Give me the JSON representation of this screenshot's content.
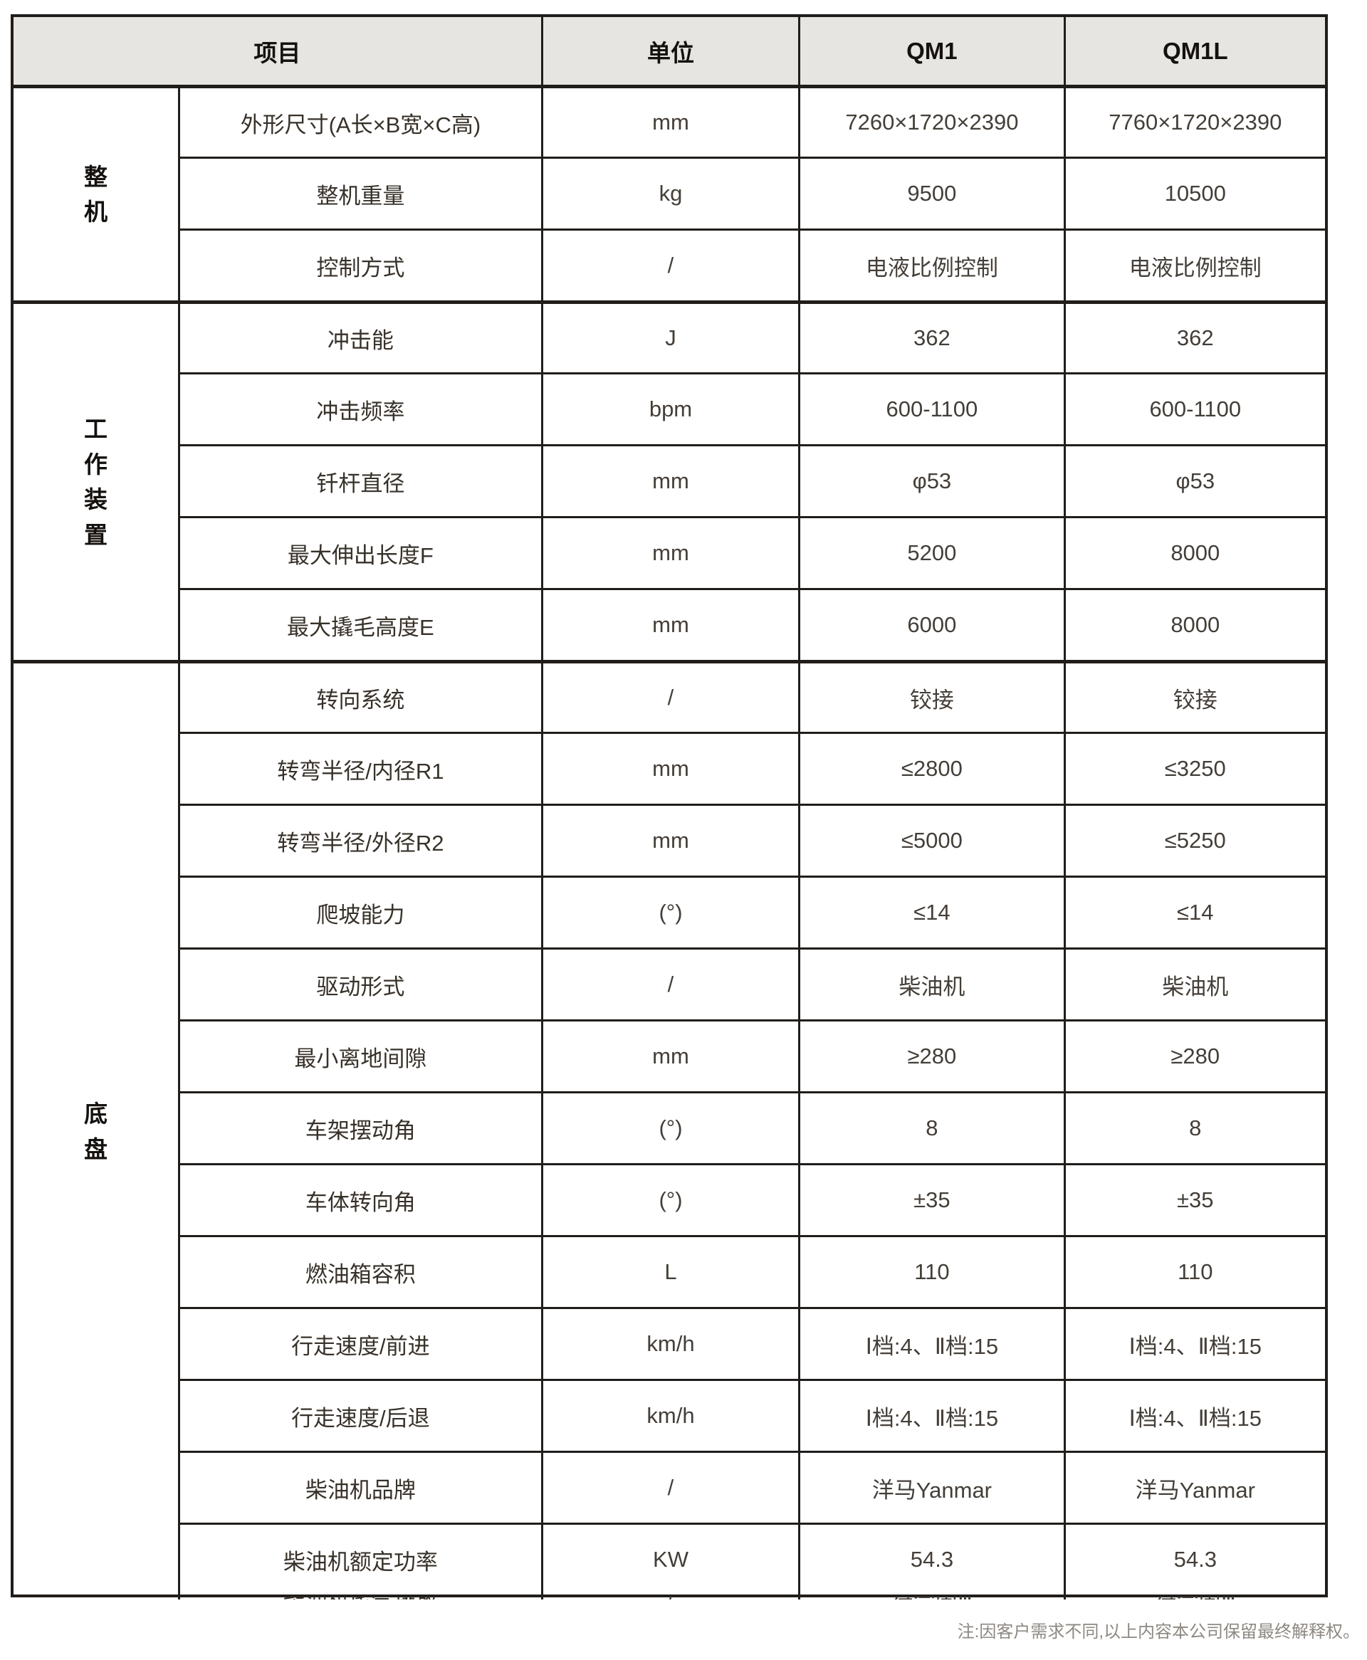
{
  "table": {
    "headers": {
      "item": "项目",
      "unit": "单位",
      "qm1": "QM1",
      "qm1l": "QM1L"
    },
    "groups": [
      {
        "label": "整机",
        "rows": [
          {
            "item": "外形尺寸(A长×B宽×C高)",
            "unit": "mm",
            "qm1": "7260×1720×2390",
            "qm1l": "7760×1720×2390"
          },
          {
            "item": "整机重量",
            "unit": "kg",
            "qm1": "9500",
            "qm1l": "10500"
          },
          {
            "item": "控制方式",
            "unit": "/",
            "qm1": "电液比例控制",
            "qm1l": "电液比例控制"
          }
        ]
      },
      {
        "label": "工作装置",
        "rows": [
          {
            "item": "冲击能",
            "unit": "J",
            "qm1": "362",
            "qm1l": "362"
          },
          {
            "item": "冲击频率",
            "unit": "bpm",
            "qm1": "600-1100",
            "qm1l": "600-1100"
          },
          {
            "item": "钎杆直径",
            "unit": "mm",
            "qm1": "φ53",
            "qm1l": "φ53"
          },
          {
            "item": "最大伸出长度F",
            "unit": "mm",
            "qm1": "5200",
            "qm1l": "8000"
          },
          {
            "item": "最大撬毛高度E",
            "unit": "mm",
            "qm1": "6000",
            "qm1l": "8000"
          }
        ]
      },
      {
        "label": "底盘",
        "rows": [
          {
            "item": "转向系统",
            "unit": "/",
            "qm1": "铰接",
            "qm1l": "铰接"
          },
          {
            "item": "转弯半径/内径R1",
            "unit": "mm",
            "qm1": "≤2800",
            "qm1l": "≤3250"
          },
          {
            "item": "转弯半径/外径R2",
            "unit": "mm",
            "qm1": "≤5000",
            "qm1l": "≤5250"
          },
          {
            "item": "爬坡能力",
            "unit": "(°)",
            "qm1": "≤14",
            "qm1l": "≤14"
          },
          {
            "item": "驱动形式",
            "unit": "/",
            "qm1": "柴油机",
            "qm1l": "柴油机"
          },
          {
            "item": "最小离地间隙",
            "unit": "mm",
            "qm1": "≥280",
            "qm1l": "≥280"
          },
          {
            "item": "车架摆动角",
            "unit": "(°)",
            "qm1": "8",
            "qm1l": "8"
          },
          {
            "item": "车体转向角",
            "unit": "(°)",
            "qm1": "±35",
            "qm1l": "±35"
          },
          {
            "item": "燃油箱容积",
            "unit": "L",
            "qm1": "110",
            "qm1l": "110"
          },
          {
            "item": "行走速度/前进",
            "unit": "km/h",
            "qm1": "Ⅰ档:4、Ⅱ档:15",
            "qm1l": "Ⅰ档:4、Ⅱ档:15"
          },
          {
            "item": "行走速度/后退",
            "unit": "km/h",
            "qm1": "Ⅰ档:4、Ⅱ档:15",
            "qm1l": "Ⅰ档:4、Ⅱ档:15"
          },
          {
            "item": "柴油机品牌",
            "unit": "/",
            "qm1": "洋马Yanmar",
            "qm1l": "洋马Yanmar"
          },
          {
            "item": "柴油机额定功率",
            "unit": "KW",
            "qm1": "54.3",
            "qm1l": "54.3"
          },
          {
            "item": "柴油机尾气排放",
            "unit": "/",
            "qm1": "符合国Ⅲ",
            "qm1l": "符合国Ⅲ"
          }
        ]
      }
    ]
  },
  "footnote": "注:因客户需求不同,以上内容本公司保留最终解释权。",
  "colors": {
    "border": "#201d1b",
    "header_bg": "#e7e5e2",
    "header_text": "#14110e",
    "body_text": "#443e38",
    "footnote_text": "#8e8882"
  }
}
